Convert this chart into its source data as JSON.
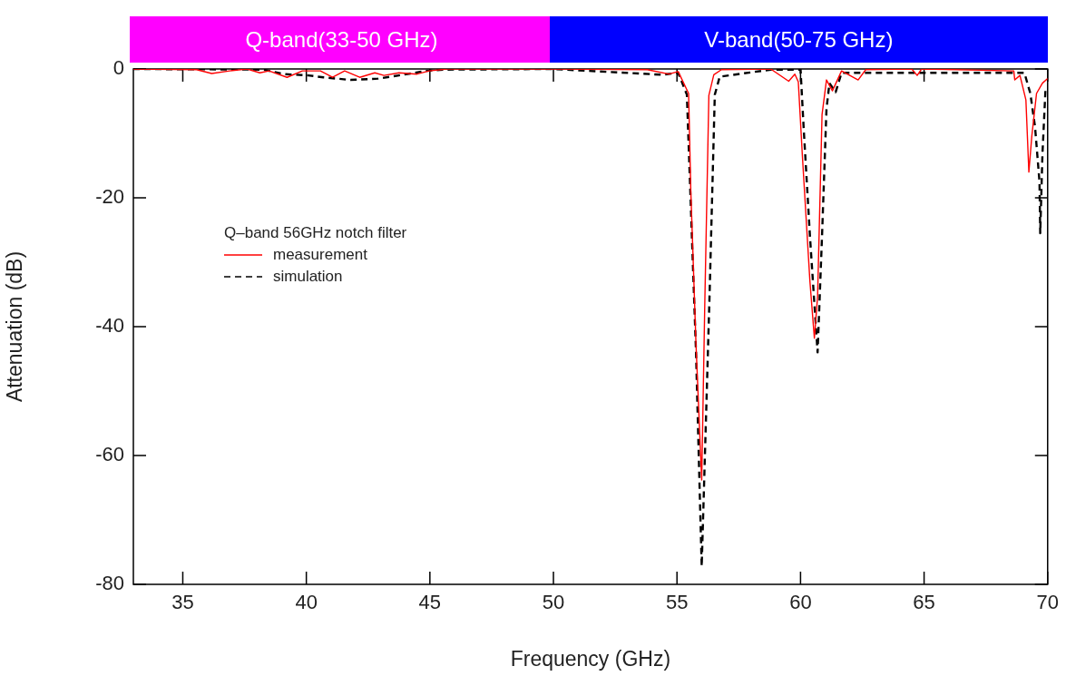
{
  "chart_data": {
    "type": "line",
    "xlabel": "Frequency (GHz)",
    "ylabel": "Attenuation (dB)",
    "legend_title": "Q–band 56GHz notch filter",
    "legend": "left",
    "grid": false,
    "marker": "none",
    "xlim": [
      33,
      70
    ],
    "xticks": [
      35,
      40,
      45,
      50,
      55,
      60,
      65,
      70
    ],
    "ylim": [
      -80,
      0
    ],
    "yticks": [
      0,
      -20,
      -40,
      -60,
      -80
    ],
    "annotations": [
      "Q-band(33-50 GHz)",
      "V-band(50-75 GHz)"
    ],
    "series": [
      {
        "name": "measurement",
        "color": "#ff0000",
        "line_style": "solid",
        "x": [
          33,
          35.56,
          36.17,
          36.9,
          37.6,
          38.12,
          38.49,
          39.22,
          39.84,
          40.57,
          41.06,
          41.55,
          42.16,
          42.77,
          43.14,
          43.75,
          44.48,
          44.97,
          45.7,
          50,
          53.8,
          54.67,
          55.05,
          55.47,
          55.56,
          55.77,
          56.0,
          56.12,
          56.29,
          56.49,
          56.8,
          58.79,
          59.52,
          59.77,
          59.91,
          60.07,
          60.38,
          60.56,
          60.69,
          60.87,
          61.05,
          61.29,
          61.66,
          62.33,
          62.64,
          64.5,
          64.72,
          64.9,
          68.63,
          68.67,
          68.88,
          69.12,
          69.24,
          69.36,
          69.55,
          69.79,
          70
        ],
        "values": [
          0,
          -0.1,
          -0.7,
          -0.3,
          0,
          -0.6,
          -0.3,
          -1.3,
          -0.3,
          -0.3,
          -1.3,
          -0.3,
          -1.3,
          -0.6,
          -1,
          -0.6,
          -0.8,
          -0.3,
          0,
          0,
          -0.1,
          -0.8,
          -0.4,
          -3.8,
          -19,
          -42.8,
          -63.8,
          -37.5,
          -4.1,
          -0.9,
          -0.1,
          0,
          -1.9,
          -0.8,
          -2,
          -13.2,
          -33,
          -41.8,
          -35.3,
          -7.1,
          -1.7,
          -3.4,
          -0.3,
          -1.7,
          -0.1,
          0,
          -1,
          0,
          -0.3,
          -1.7,
          -1,
          -4.8,
          -16,
          -10.4,
          -3.8,
          -2.2,
          -1.5
        ]
      },
      {
        "name": "simulation",
        "color": "#000000",
        "line_style": "dashed",
        "x": [
          33,
          38.25,
          39.1,
          40.08,
          40.69,
          41.79,
          42.9,
          43.75,
          44.85,
          45.58,
          50,
          54.4,
          55.05,
          55.4,
          55.77,
          56.0,
          56.32,
          56.53,
          56.73,
          58.8,
          60.0,
          60.13,
          60.38,
          60.69,
          60.87,
          61.05,
          61.17,
          61.42,
          61.66,
          62.7,
          69.06,
          69.3,
          69.49,
          69.67,
          69.7,
          69.79,
          69.91,
          70
        ],
        "values": [
          0,
          -0.1,
          -0.8,
          -1,
          -1.3,
          -1.7,
          -1.5,
          -1,
          -0.3,
          -0.1,
          0,
          -0.9,
          -0.6,
          -4,
          -44,
          -77.2,
          -34.9,
          -4,
          -1.2,
          -0.1,
          -0.1,
          -9.4,
          -25.9,
          -44,
          -25.9,
          -6.2,
          -2.2,
          -3.6,
          -0.6,
          -0.6,
          -0.6,
          -3.8,
          -9,
          -17.5,
          -25.5,
          -13.2,
          -3.4,
          -3.4
        ]
      }
    ]
  }
}
